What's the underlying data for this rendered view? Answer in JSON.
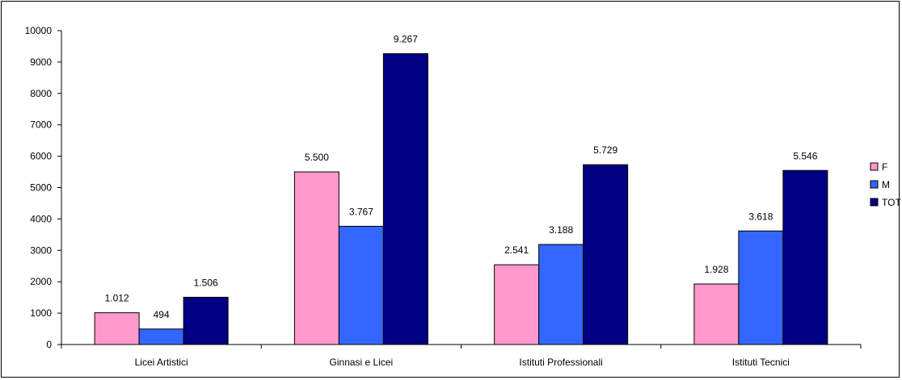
{
  "chart_data": {
    "type": "bar",
    "title": "",
    "xlabel": "",
    "ylabel": "",
    "ylim": [
      0,
      10000
    ],
    "yticks": [
      0,
      1000,
      2000,
      3000,
      4000,
      5000,
      6000,
      7000,
      8000,
      9000,
      10000
    ],
    "grid": false,
    "legend_position": "right",
    "categories": [
      "Licei Artistici",
      "Ginnasi e Licei",
      "Istituti Professionali",
      "Istituti Tecnici"
    ],
    "series": [
      {
        "name": "F",
        "color": "#ff99cc",
        "values": [
          1012,
          5500,
          2541,
          1928
        ],
        "labels": [
          "1.012",
          "5.500",
          "2.541",
          "1.928"
        ]
      },
      {
        "name": "M",
        "color": "#3366ff",
        "values": [
          494,
          3767,
          3188,
          3618
        ],
        "labels": [
          "494",
          "3.767",
          "3.188",
          "3.618"
        ]
      },
      {
        "name": "TOT",
        "color": "#000080",
        "values": [
          1506,
          9267,
          5729,
          5546
        ],
        "labels": [
          "1.506",
          "9.267",
          "5.729",
          "5.546"
        ]
      }
    ]
  }
}
